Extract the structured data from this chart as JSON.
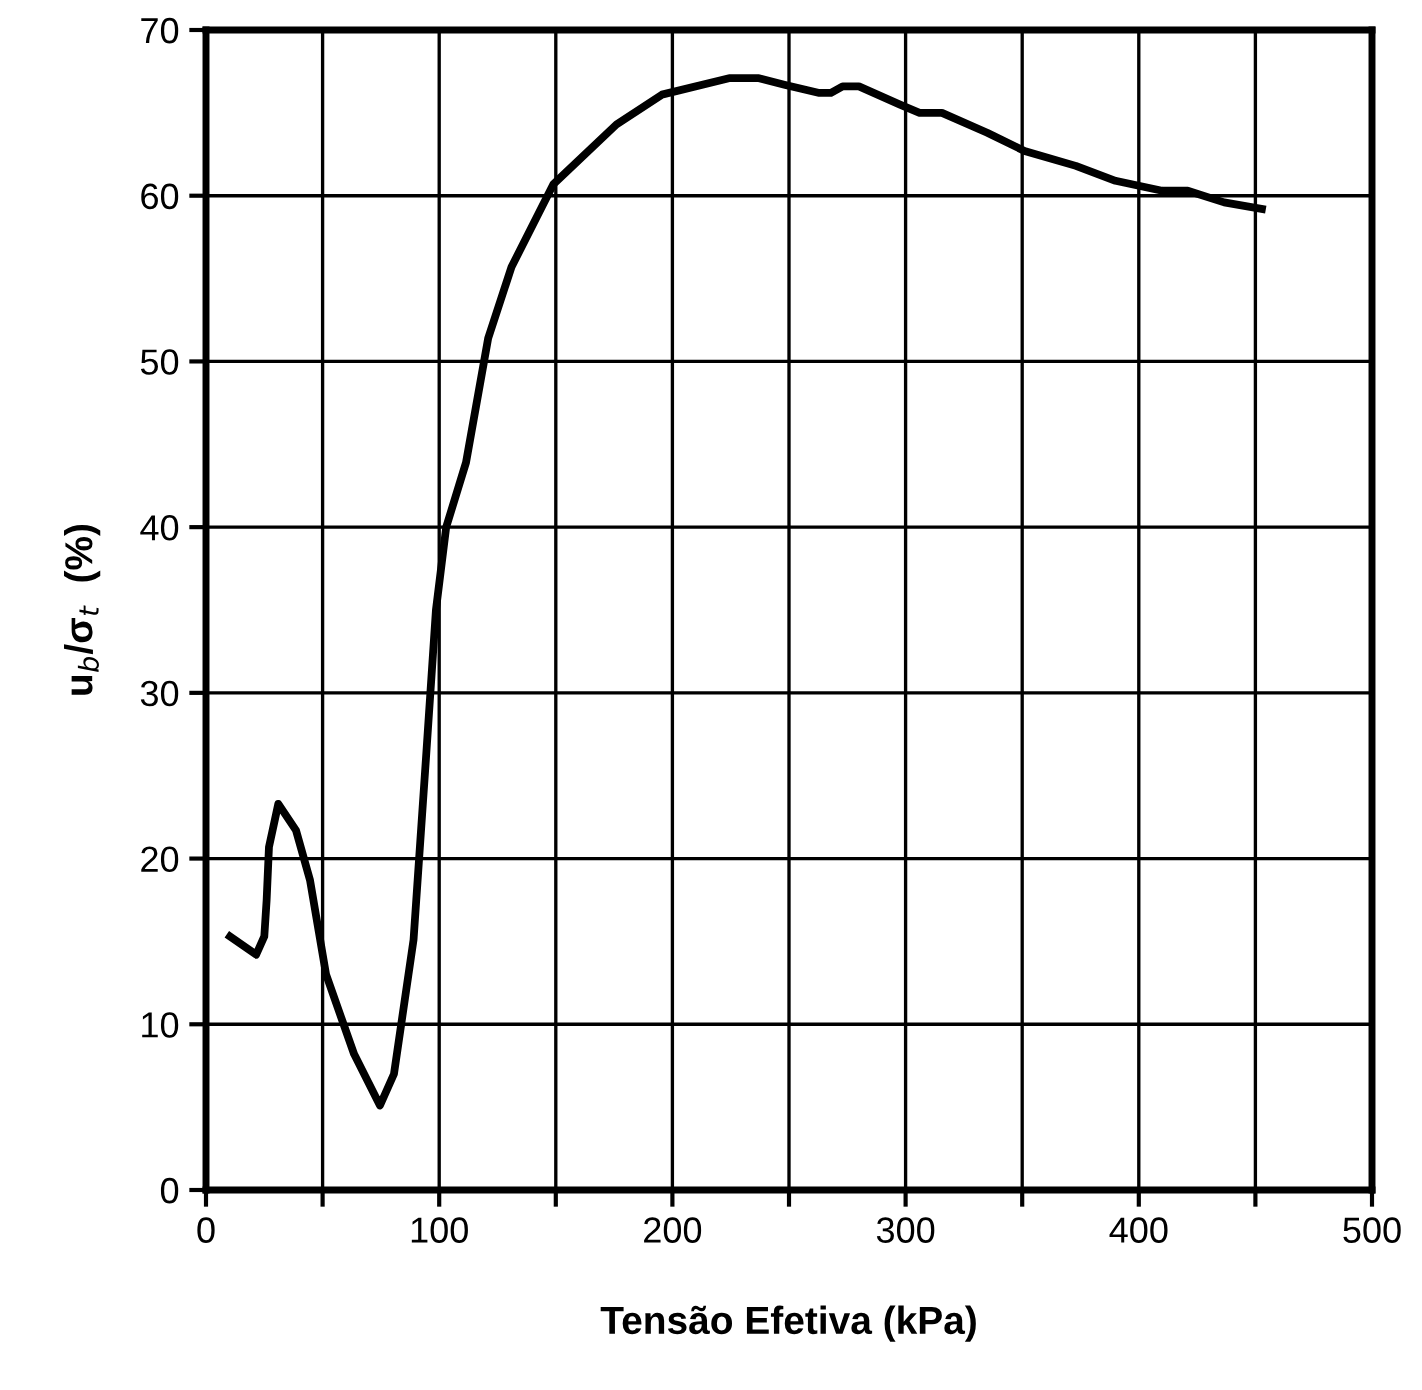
{
  "chart_data": {
    "type": "line",
    "xlabel": "Tensão Efetiva (kPa)",
    "ylabel": "u$_{b}$/σ$_{t}$  (%)",
    "x": [
      10.3,
      21.5,
      25,
      26,
      27,
      31,
      38.6,
      44.6,
      51.5,
      63.5,
      74.6,
      80.6,
      89,
      94.3,
      98.6,
      103,
      111.5,
      121,
      131,
      149,
      176,
      195.5,
      224.7,
      236.7,
      248,
      263,
      268,
      273,
      280,
      297.6,
      306,
      315.6,
      335,
      351,
      373,
      390,
      410,
      421,
      436.6,
      452.8
    ],
    "series": [
      {
        "color": "#000000",
        "values": [
          15.3,
          14.2,
          15.3,
          17.5,
          20.7,
          23.3,
          21.7,
          18.7,
          13,
          8.2,
          5.1,
          7,
          15.1,
          26,
          35,
          40,
          43.9,
          51.4,
          55.7,
          60.7,
          64.3,
          66.1,
          67.1,
          67.1,
          66.7,
          66.2,
          66.2,
          66.6,
          66.6,
          65.5,
          65.0,
          65.0,
          63.8,
          62.7,
          61.8,
          60.9,
          60.3,
          60.3,
          59.6,
          59.2
        ]
      }
    ],
    "xlim": [
      0,
      500
    ],
    "xticks": [
      0,
      {
        "value": 50,
        "label": null
      },
      100,
      {
        "value": 150,
        "label": null
      },
      200,
      {
        "value": 250,
        "label": null
      },
      300,
      {
        "value": 350,
        "label": null
      },
      400,
      {
        "value": 450,
        "label": null
      },
      500
    ],
    "ylim": [
      0,
      70
    ],
    "yticks": [
      0,
      10,
      20,
      30,
      40,
      50,
      60,
      70
    ],
    "grid": true,
    "marker": "none",
    "line_style": "solid"
  }
}
